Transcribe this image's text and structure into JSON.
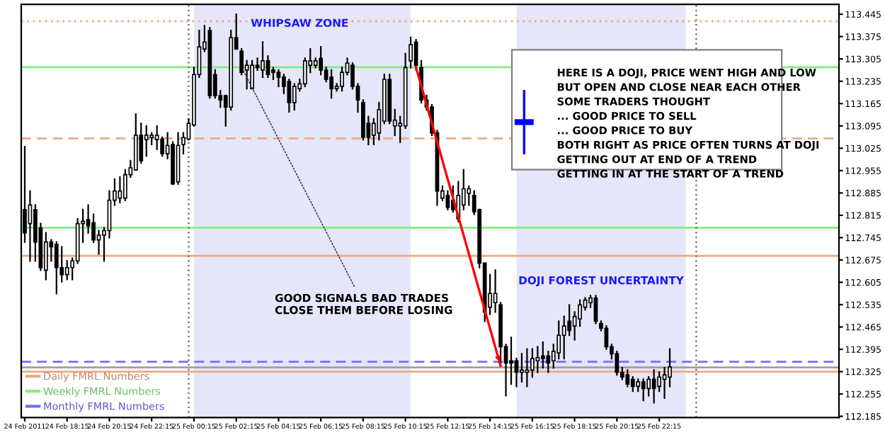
{
  "chart_data": {
    "type": "candlestick",
    "x": [
      "2011-02-24T16:15",
      "2011-02-24T16:30",
      "2011-02-24T16:45",
      "2011-02-24T17:00",
      "2011-02-24T17:15",
      "2011-02-24T17:30",
      "2011-02-24T17:45",
      "2011-02-24T18:00",
      "2011-02-24T18:15",
      "2011-02-24T18:30",
      "2011-02-24T18:45",
      "2011-02-24T19:00",
      "2011-02-24T19:15",
      "2011-02-24T19:30",
      "2011-02-24T19:45",
      "2011-02-24T20:00",
      "2011-02-24T20:15",
      "2011-02-24T20:30",
      "2011-02-24T20:45",
      "2011-02-24T21:00",
      "2011-02-24T21:15",
      "2011-02-24T21:30",
      "2011-02-24T21:45",
      "2011-02-24T22:00",
      "2011-02-24T22:15",
      "2011-02-24T22:30",
      "2011-02-24T22:45",
      "2011-02-24T23:00",
      "2011-02-24T23:15",
      "2011-02-24T23:30",
      "2011-02-24T23:45",
      "2011-02-25T00:00",
      "2011-02-25T00:15",
      "2011-02-25T00:30",
      "2011-02-25T00:45",
      "2011-02-25T01:00",
      "2011-02-25T01:15",
      "2011-02-25T01:30",
      "2011-02-25T01:45",
      "2011-02-25T02:00",
      "2011-02-25T02:15",
      "2011-02-25T02:30",
      "2011-02-25T02:45",
      "2011-02-25T03:00",
      "2011-02-25T03:15",
      "2011-02-25T03:30",
      "2011-02-25T03:45",
      "2011-02-25T04:00",
      "2011-02-25T04:15",
      "2011-02-25T04:30",
      "2011-02-25T04:45",
      "2011-02-25T05:00",
      "2011-02-25T05:15",
      "2011-02-25T05:30",
      "2011-02-25T05:45",
      "2011-02-25T06:00",
      "2011-02-25T06:15",
      "2011-02-25T06:30",
      "2011-02-25T06:45",
      "2011-02-25T07:00",
      "2011-02-25T07:15",
      "2011-02-25T07:30",
      "2011-02-25T07:45",
      "2011-02-25T08:00",
      "2011-02-25T08:15",
      "2011-02-25T08:30",
      "2011-02-25T08:45",
      "2011-02-25T09:00",
      "2011-02-25T09:15",
      "2011-02-25T09:30",
      "2011-02-25T09:45",
      "2011-02-25T10:00",
      "2011-02-25T10:15",
      "2011-02-25T10:30",
      "2011-02-25T10:45",
      "2011-02-25T11:00",
      "2011-02-25T11:15",
      "2011-02-25T11:30",
      "2011-02-25T11:45",
      "2011-02-25T12:00",
      "2011-02-25T12:15",
      "2011-02-25T12:30",
      "2011-02-25T12:45",
      "2011-02-25T13:00",
      "2011-02-25T13:15",
      "2011-02-25T13:30",
      "2011-02-25T13:45",
      "2011-02-25T14:00",
      "2011-02-25T14:15",
      "2011-02-25T14:30",
      "2011-02-25T14:45",
      "2011-02-25T15:00",
      "2011-02-25T15:15",
      "2011-02-25T15:30",
      "2011-02-25T15:45",
      "2011-02-25T16:00",
      "2011-02-25T16:15",
      "2011-02-25T16:30",
      "2011-02-25T16:45",
      "2011-02-25T17:00",
      "2011-02-25T17:15",
      "2011-02-25T17:30",
      "2011-02-25T17:45",
      "2011-02-25T18:00",
      "2011-02-25T18:15",
      "2011-02-25T18:30",
      "2011-02-25T18:45",
      "2011-02-25T19:00",
      "2011-02-25T19:15",
      "2011-02-25T19:30",
      "2011-02-25T19:45",
      "2011-02-25T20:00",
      "2011-02-25T20:15",
      "2011-02-25T20:30",
      "2011-02-25T20:45",
      "2011-02-25T21:00",
      "2011-02-25T21:15",
      "2011-02-25T21:30",
      "2011-02-25T21:45",
      "2011-02-25T22:00",
      "2011-02-25T22:15",
      "2011-02-25T22:30",
      "2011-02-25T22:45"
    ],
    "ohlc": [
      [
        112.833,
        113.03,
        112.731,
        112.76
      ],
      [
        112.789,
        112.891,
        112.672,
        112.847
      ],
      [
        112.833,
        112.847,
        112.672,
        112.731
      ],
      [
        112.775,
        112.789,
        112.643,
        112.651
      ],
      [
        112.643,
        112.76,
        112.614,
        112.731
      ],
      [
        112.731,
        112.738,
        112.672,
        112.716
      ],
      [
        112.724,
        112.731,
        112.57,
        112.651
      ],
      [
        112.651,
        112.716,
        112.607,
        112.629
      ],
      [
        112.629,
        112.672,
        112.614,
        112.651
      ],
      [
        112.651,
        112.68,
        112.614,
        112.672
      ],
      [
        112.672,
        112.804,
        112.665,
        112.789
      ],
      [
        112.789,
        112.833,
        112.731,
        112.796
      ],
      [
        112.801,
        112.847,
        112.76,
        112.782
      ],
      [
        112.792,
        112.818,
        112.731,
        112.738
      ],
      [
        112.738,
        112.767,
        112.694,
        112.753
      ],
      [
        112.753,
        112.775,
        112.672,
        112.767
      ],
      [
        112.767,
        112.891,
        112.745,
        112.862
      ],
      [
        112.862,
        112.928,
        112.847,
        112.891
      ],
      [
        112.869,
        112.935,
        112.855,
        112.891
      ],
      [
        112.869,
        112.957,
        112.862,
        112.942
      ],
      [
        112.942,
        112.986,
        112.935,
        112.964
      ],
      [
        112.957,
        113.132,
        112.957,
        113.066
      ],
      [
        113.066,
        113.103,
        112.979,
        112.986
      ],
      [
        113.052,
        113.095,
        113.001,
        113.066
      ],
      [
        113.059,
        113.073,
        113.037,
        113.066
      ],
      [
        113.052,
        113.095,
        113.022,
        113.066
      ],
      [
        113.054,
        113.059,
        113.001,
        113.008
      ],
      [
        113.008,
        113.073,
        112.993,
        113.034
      ],
      [
        113.037,
        113.044,
        112.913,
        112.913
      ],
      [
        112.92,
        113.073,
        112.913,
        113.034
      ],
      [
        113.037,
        113.073,
        113.008,
        113.059
      ],
      [
        113.054,
        113.117,
        113.052,
        113.103
      ],
      [
        113.098,
        113.278,
        113.095,
        113.256
      ],
      [
        113.256,
        113.394,
        113.248,
        113.343
      ],
      [
        113.336,
        113.409,
        113.329,
        113.358
      ],
      [
        113.394,
        113.402,
        113.183,
        113.19
      ],
      [
        113.256,
        113.27,
        113.183,
        113.19
      ],
      [
        113.19,
        113.205,
        113.154,
        113.176
      ],
      [
        113.19,
        113.19,
        113.095,
        113.154
      ],
      [
        113.154,
        113.394,
        113.146,
        113.372
      ],
      [
        113.372,
        113.445,
        113.336,
        113.336
      ],
      [
        113.329,
        113.336,
        113.256,
        113.263
      ],
      [
        113.27,
        113.299,
        113.212,
        113.285
      ],
      [
        113.212,
        113.299,
        113.212,
        113.285
      ],
      [
        113.285,
        113.307,
        113.27,
        113.278
      ],
      [
        113.27,
        113.358,
        113.248,
        113.299
      ],
      [
        113.299,
        113.314,
        113.248,
        113.256
      ],
      [
        113.27,
        113.278,
        113.241,
        113.263
      ],
      [
        113.263,
        113.27,
        113.219,
        113.248
      ],
      [
        113.248,
        113.256,
        113.197,
        113.219
      ],
      [
        113.234,
        113.241,
        113.139,
        113.168
      ],
      [
        113.168,
        113.227,
        113.146,
        113.219
      ],
      [
        113.212,
        113.241,
        113.205,
        113.227
      ],
      [
        113.227,
        113.307,
        113.219,
        113.299
      ],
      [
        113.285,
        113.336,
        113.263,
        113.299
      ],
      [
        113.285,
        113.307,
        113.278,
        113.299
      ],
      [
        113.307,
        113.343,
        113.256,
        113.27
      ],
      [
        113.27,
        113.278,
        113.234,
        113.241
      ],
      [
        113.248,
        113.27,
        113.183,
        113.212
      ],
      [
        113.212,
        113.227,
        113.205,
        113.219
      ],
      [
        113.219,
        113.278,
        113.205,
        113.263
      ],
      [
        113.263,
        113.307,
        113.256,
        113.292
      ],
      [
        113.285,
        113.292,
        113.212,
        113.219
      ],
      [
        113.219,
        113.227,
        113.139,
        113.176
      ],
      [
        113.168,
        113.176,
        113.052,
        113.059
      ],
      [
        113.103,
        113.124,
        113.037,
        113.059
      ],
      [
        113.066,
        113.117,
        113.037,
        113.103
      ],
      [
        113.073,
        113.168,
        113.052,
        113.146
      ],
      [
        113.11,
        113.256,
        113.103,
        113.241
      ],
      [
        113.241,
        113.256,
        113.103,
        113.11
      ],
      [
        113.095,
        113.146,
        113.066,
        113.113
      ],
      [
        113.095,
        113.124,
        113.044,
        113.103
      ],
      [
        113.095,
        113.321,
        113.088,
        113.278
      ],
      [
        113.299,
        113.372,
        113.278,
        113.35
      ],
      [
        113.358,
        113.365,
        113.27,
        113.285
      ],
      [
        113.278,
        113.299,
        113.168,
        113.176
      ],
      [
        113.176,
        113.19,
        113.146,
        113.154
      ],
      [
        113.154,
        113.161,
        113.066,
        113.073
      ],
      [
        113.073,
        113.081,
        112.847,
        112.891
      ],
      [
        112.869,
        112.906,
        112.862,
        112.891
      ],
      [
        112.877,
        112.891,
        112.833,
        112.84
      ],
      [
        112.862,
        112.906,
        112.826,
        112.833
      ],
      [
        112.804,
        112.92,
        112.796,
        112.877
      ],
      [
        112.847,
        112.957,
        112.833,
        112.898
      ],
      [
        112.884,
        112.906,
        112.847,
        112.898
      ],
      [
        112.877,
        112.891,
        112.818,
        112.826
      ],
      [
        112.833,
        112.833,
        112.651,
        112.665
      ],
      [
        112.665,
        112.665,
        112.483,
        112.512
      ],
      [
        112.527,
        112.629,
        112.505,
        112.57
      ],
      [
        112.541,
        112.643,
        112.512,
        112.57
      ],
      [
        112.534,
        112.541,
        112.352,
        112.403
      ],
      [
        112.403,
        112.41,
        112.25,
        112.352
      ],
      [
        112.359,
        112.432,
        112.286,
        112.352
      ],
      [
        112.359,
        112.366,
        112.279,
        112.323
      ],
      [
        112.323,
        112.381,
        112.293,
        112.33
      ],
      [
        112.323,
        112.396,
        112.279,
        112.33
      ],
      [
        112.33,
        112.396,
        112.308,
        112.366
      ],
      [
        112.359,
        112.403,
        112.323,
        112.369
      ],
      [
        112.374,
        112.417,
        112.337,
        112.366
      ],
      [
        112.374,
        112.388,
        112.323,
        112.352
      ],
      [
        112.359,
        112.41,
        112.337,
        112.388
      ],
      [
        112.384,
        112.483,
        112.366,
        112.439
      ],
      [
        112.439,
        112.498,
        112.366,
        112.468
      ],
      [
        112.483,
        112.534,
        112.439,
        112.454
      ],
      [
        112.468,
        112.512,
        112.425,
        112.498
      ],
      [
        112.49,
        112.549,
        112.468,
        112.534
      ],
      [
        112.527,
        112.556,
        112.519,
        112.549
      ],
      [
        112.541,
        112.563,
        112.527,
        112.556
      ],
      [
        112.556,
        112.563,
        112.476,
        112.483
      ],
      [
        112.476,
        112.483,
        112.454,
        112.461
      ],
      [
        112.461,
        112.468,
        112.396,
        112.403
      ],
      [
        112.403,
        112.41,
        112.366,
        112.381
      ],
      [
        112.381,
        112.388,
        112.315,
        112.323
      ],
      [
        112.323,
        112.337,
        112.301,
        112.308
      ],
      [
        112.315,
        112.33,
        112.279,
        112.286
      ],
      [
        112.301,
        112.308,
        112.264,
        112.279
      ],
      [
        112.279,
        112.301,
        112.264,
        112.293
      ],
      [
        112.293,
        112.301,
        112.235,
        112.272
      ],
      [
        112.272,
        112.308,
        112.25,
        112.301
      ],
      [
        112.301,
        112.33,
        112.228,
        112.272
      ],
      [
        112.279,
        112.323,
        112.264,
        112.308
      ],
      [
        112.301,
        112.337,
        112.242,
        112.315
      ],
      [
        112.308,
        112.396,
        112.279,
        112.34
      ]
    ],
    "series": [
      {
        "type": "line",
        "color": "#ff0000",
        "x": [
          "2011-02-25T10:45",
          "2011-02-25T14:45"
        ],
        "values": [
          113.279,
          112.343
        ]
      }
    ],
    "xlim": [
      "2011-02-24T16:05",
      "2011-02-26T06:45"
    ],
    "xticks": [
      {
        "value": "2011-02-24T16:15",
        "label": "24 Feb 2011"
      },
      {
        "value": "2011-02-24T18:15",
        "label": "24 Feb 18:15"
      },
      {
        "value": "2011-02-24T20:15",
        "label": "24 Feb 20:15"
      },
      {
        "value": "2011-02-24T22:15",
        "label": "24 Feb 22:15"
      },
      {
        "value": "2011-02-25T00:15",
        "label": "25 Feb 00:15"
      },
      {
        "value": "2011-02-25T02:15",
        "label": "25 Feb 02:15"
      },
      {
        "value": "2011-02-25T04:15",
        "label": "25 Feb 04:15"
      },
      {
        "value": "2011-02-25T06:15",
        "label": "25 Feb 06:15"
      },
      {
        "value": "2011-02-25T08:15",
        "label": "25 Feb 08:15"
      },
      {
        "value": "2011-02-25T10:15",
        "label": "25 Feb 10:15"
      },
      {
        "value": "2011-02-25T12:15",
        "label": "25 Feb 12:15"
      },
      {
        "value": "2011-02-25T14:15",
        "label": "25 Feb 14:15"
      },
      {
        "value": "2011-02-25T16:15",
        "label": "25 Feb 16:15"
      },
      {
        "value": "2011-02-25T18:15",
        "label": "25 Feb 18:15"
      },
      {
        "value": "2011-02-25T20:15",
        "label": "25 Feb 20:15"
      },
      {
        "value": "2011-02-25T22:15",
        "label": "25 Feb 22:15"
      }
    ],
    "ylim": [
      112.181,
      113.476
    ],
    "yticks": [
      113.445,
      113.375,
      113.305,
      113.235,
      113.165,
      113.095,
      113.025,
      112.955,
      112.885,
      112.815,
      112.745,
      112.675,
      112.605,
      112.535,
      112.465,
      112.395,
      112.325,
      112.255,
      112.185
    ],
    "ref_lines": [
      {
        "axis": "y",
        "value": 113.423,
        "label": "Daily FMRL Numbers",
        "color": "#f0a882",
        "line_style": "dotted"
      },
      {
        "axis": "y",
        "value": 113.279,
        "label": "Weekly FMRL Numbers",
        "color": "#80ee80",
        "line_style": "solid"
      },
      {
        "axis": "y",
        "value": 113.056,
        "color": "#f0a882",
        "line_style": "dashed"
      },
      {
        "axis": "y",
        "value": 112.776,
        "color": "#80ee80",
        "line_style": "solid"
      },
      {
        "axis": "y",
        "value": 112.688,
        "color": "#f0a882",
        "line_style": "solid"
      },
      {
        "axis": "y",
        "value": 112.356,
        "label": "Monthly FMRL Numbers",
        "color": "#7070ff",
        "line_style": "dashed"
      },
      {
        "axis": "y",
        "value": 112.338,
        "color": "#a0a0a0",
        "line_style": "solid"
      },
      {
        "axis": "y",
        "value": 112.325,
        "color": "#f0a882",
        "line_style": "solid"
      },
      {
        "axis": "x",
        "value": "2011-02-25T00:00",
        "color": "#606060",
        "line_style": "dotted"
      },
      {
        "axis": "x",
        "value": "2011-02-26T00:00",
        "color": "#606060",
        "line_style": "dotted"
      }
    ],
    "bands": [
      {
        "axis": "x",
        "from": "2011-02-25T00:15",
        "to": "2011-02-25T10:30",
        "color": "#e6e6fa"
      },
      {
        "axis": "x",
        "from": "2011-02-25T15:30",
        "to": "2011-02-25T23:30",
        "color": "#e6e6fa"
      }
    ],
    "annotations": [
      {
        "text": "WHIPSAW ZONE",
        "x": "2011-02-25T05:15",
        "y": 113.415
      },
      "DOJI FOREST UNCERTAINTY",
      {
        "text": "GOOD SIGNALS BAD TRADES\nCLOSE THEM BEFORE LOSING",
        "x": "2011-02-25T02:30",
        "y": 113.279
      },
      "HERE IS A DOJI, PRICE WENT HIGH AND LOW\nBUT OPEN AND CLOSE NEAR EACH OTHER\nSOME TRADERS THOUGHT\n... GOOD PRICE TO SELL\n... GOOD PRICE TO BUY\nBOTH RIGHT AS PRICE OFTEN TURNS AT DOJI\nGETTING OUT AT END OF A TREND\nGETTING IN AT THE START OF A TREND"
    ],
    "legend": "bottom left",
    "grid": false
  }
}
